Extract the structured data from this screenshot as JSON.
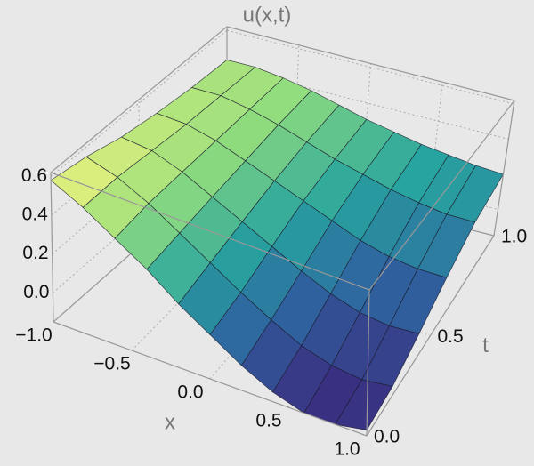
{
  "chart_data": {
    "type": "surface",
    "title": "u(x,t)",
    "xlabel": "x",
    "tlabel": "t",
    "x": [
      -1,
      -0.8,
      -0.6,
      -0.4,
      -0.2,
      0,
      0.2,
      0.4,
      0.6,
      0.8,
      1
    ],
    "t": [
      0,
      0.2,
      0.4,
      0.6,
      0.8,
      1
    ],
    "values": [
      [
        0.58,
        0.5,
        0.4,
        0.3,
        0.18,
        0.08,
        -0.02,
        -0.1,
        -0.15,
        -0.15,
        -0.12
      ],
      [
        0.55,
        0.5,
        0.42,
        0.32,
        0.22,
        0.12,
        0.03,
        -0.05,
        -0.1,
        -0.12,
        -0.1
      ],
      [
        0.5,
        0.48,
        0.42,
        0.34,
        0.26,
        0.18,
        0.1,
        0.03,
        -0.02,
        -0.04,
        -0.03
      ],
      [
        0.47,
        0.46,
        0.42,
        0.36,
        0.3,
        0.24,
        0.18,
        0.12,
        0.08,
        0.06,
        0.06
      ],
      [
        0.45,
        0.45,
        0.42,
        0.38,
        0.33,
        0.28,
        0.24,
        0.2,
        0.17,
        0.15,
        0.15
      ],
      [
        0.44,
        0.44,
        0.42,
        0.39,
        0.35,
        0.31,
        0.28,
        0.25,
        0.23,
        0.21,
        0.2
      ]
    ],
    "xlim": [
      -1,
      1
    ],
    "tlim": [
      0,
      1
    ],
    "zlim": [
      -0.15,
      0.62
    ],
    "xticks": [
      {
        "value": -1,
        "label": "−1.0"
      },
      {
        "value": -0.5,
        "label": "−0.5"
      },
      {
        "value": 0,
        "label": "0.0"
      },
      {
        "value": 0.5,
        "label": "0.5"
      },
      {
        "value": 1,
        "label": "1.0"
      }
    ],
    "tticks": [
      {
        "value": 0,
        "label": "0.0"
      },
      {
        "value": 0.5,
        "label": "0.5"
      },
      {
        "value": 1,
        "label": "1.0"
      }
    ],
    "zticks": [
      {
        "value": 0,
        "label": "0.0"
      },
      0.2,
      0.4,
      0.6
    ],
    "grid": true,
    "colormap": [
      "#3b2a7e",
      "#2f63a0",
      "#27a59f",
      "#8fdc7e",
      "#f4f47c"
    ]
  }
}
